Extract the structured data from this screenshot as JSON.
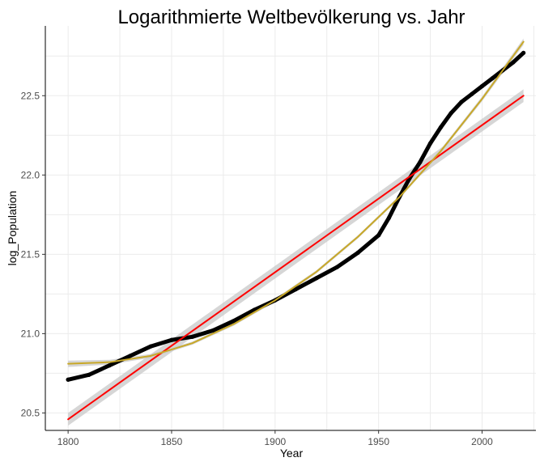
{
  "chart_data": {
    "type": "line",
    "title": "Logarithmierte Weltbevölkerung vs. Jahr",
    "xlabel": "Year",
    "ylabel": "log_Population",
    "xlim": [
      1789,
      2026
    ],
    "ylim": [
      20.39,
      22.94
    ],
    "x_ticks": [
      1800,
      1850,
      1900,
      1950,
      2000
    ],
    "y_ticks": [
      20.5,
      21.0,
      21.5,
      22.0,
      22.5
    ],
    "x_tick_labels": [
      "1800",
      "1850",
      "1900",
      "1950",
      "2000"
    ],
    "y_tick_labels": [
      "20.5",
      "21.0",
      "21.5",
      "22.0",
      "22.5"
    ],
    "grid": true,
    "legend": "none",
    "series": [
      {
        "style": "points",
        "color": "#000000",
        "x": [
          1800,
          1810,
          1820,
          1830,
          1840,
          1850,
          1860,
          1870,
          1880,
          1890,
          1900,
          1910,
          1920,
          1930,
          1940,
          1950,
          1955,
          1960,
          1965,
          1970,
          1975,
          1980,
          1985,
          1990,
          1995,
          2000,
          2005,
          2010,
          2015,
          2020
        ],
        "values": [
          20.71,
          20.74,
          20.8,
          20.86,
          20.92,
          20.96,
          20.98,
          21.02,
          21.08,
          21.15,
          21.21,
          21.28,
          21.35,
          21.42,
          21.51,
          21.62,
          21.73,
          21.86,
          21.98,
          22.08,
          22.2,
          22.3,
          22.39,
          22.46,
          22.51,
          22.56,
          22.61,
          22.66,
          22.71,
          22.77
        ]
      },
      {
        "style": "linear-fit",
        "color": "#ff0000",
        "band_color": "#c8c8c8",
        "x": [
          1800,
          2020
        ],
        "values": [
          20.46,
          22.5
        ],
        "band": [
          0.04,
          0.04
        ]
      },
      {
        "style": "quadratic-fit",
        "color": "#c8a828",
        "band_color": "#c8c8c8",
        "x": [
          1800,
          1820,
          1840,
          1860,
          1880,
          1900,
          1920,
          1940,
          1960,
          1980,
          2000,
          2020
        ],
        "values": [
          20.81,
          20.82,
          20.86,
          20.94,
          21.06,
          21.21,
          21.39,
          21.61,
          21.86,
          22.15,
          22.48,
          22.84
        ],
        "band": [
          0.02,
          0.015,
          0.012,
          0.01,
          0.01,
          0.01,
          0.01,
          0.01,
          0.01,
          0.012,
          0.015,
          0.02
        ]
      }
    ]
  }
}
